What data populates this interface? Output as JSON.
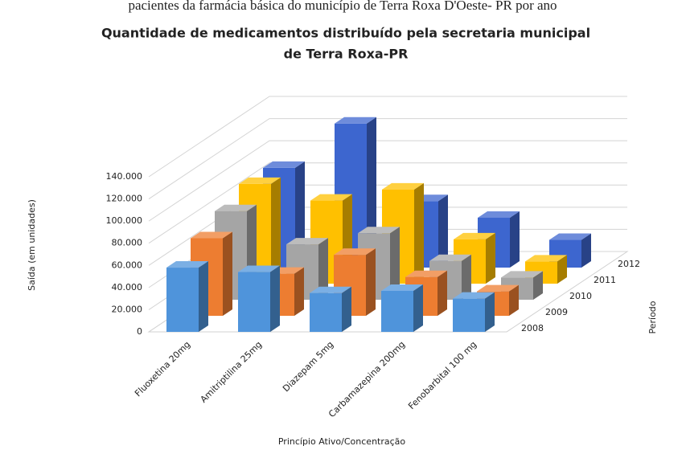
{
  "caption": "pacientes da farmácia básica do município de Terra Roxa D'Oeste- PR por ano",
  "chart_data": {
    "type": "bar3d",
    "title": [
      "Quantidade de medicamentos distribuído pela secretaria municipal",
      "de Terra Roxa-PR"
    ],
    "y_label": "Saída (em unidades)",
    "x_label": "Princípio Ativo/Concentração",
    "z_label": "Período",
    "categories": [
      "Fluoxetina 20mg",
      "Amitriptilina 25mg",
      "Diazepam 5mg",
      "Carbamazepina 200mg",
      "Fenobarbital 100 mg"
    ],
    "series": [
      {
        "name": "2008",
        "color": "#4f94db",
        "values": [
          58000,
          54000,
          35000,
          37000,
          30000
        ]
      },
      {
        "name": "2009",
        "color": "#ed7d31",
        "values": [
          70000,
          38000,
          55000,
          35000,
          22000
        ]
      },
      {
        "name": "2010",
        "color": "#a5a5a5",
        "values": [
          80000,
          50000,
          60000,
          35000,
          20000
        ]
      },
      {
        "name": "2011",
        "color": "#ffc000",
        "values": [
          90000,
          75000,
          85000,
          40000,
          20000
        ]
      },
      {
        "name": "2012",
        "color": "#3d66cf",
        "values": [
          90000,
          130000,
          60000,
          45000,
          25000
        ]
      }
    ],
    "ylim": [
      0,
      140000
    ],
    "yticks": [
      0,
      {
        "value": 20000,
        "label": "20.000"
      },
      {
        "value": 40000,
        "label": "40.000"
      },
      {
        "value": 60000,
        "label": "60.000"
      },
      {
        "value": 80000,
        "label": "80.000"
      },
      {
        "value": 100000,
        "label": "100.000"
      },
      {
        "value": 120000,
        "label": "120.000"
      },
      {
        "value": 140000,
        "label": "140.000"
      }
    ],
    "grid": true
  }
}
